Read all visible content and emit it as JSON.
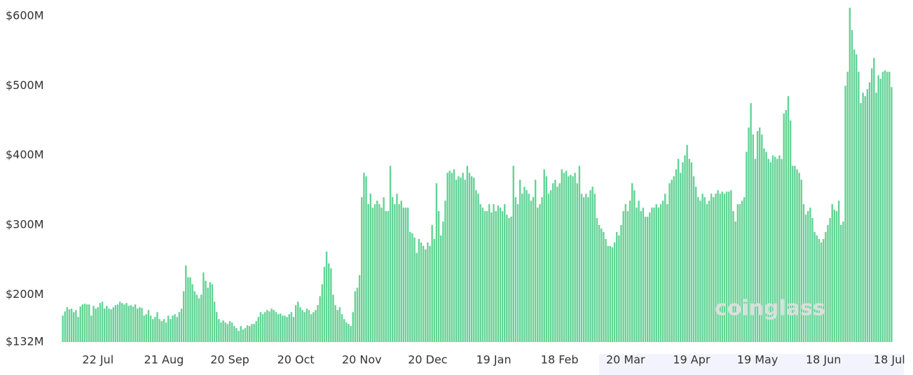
{
  "chart_data": {
    "type": "bar",
    "color": "#62d394",
    "watermark": "coinglass",
    "ylim": [
      132,
      615
    ],
    "yticks": [
      {
        "value": 132,
        "label": "$132M"
      },
      {
        "value": 200,
        "label": "$200M"
      },
      {
        "value": 300,
        "label": "$300M"
      },
      {
        "value": 400,
        "label": "$400M"
      },
      {
        "value": 500,
        "label": "$500M"
      },
      {
        "value": 600,
        "label": "$600M"
      }
    ],
    "grid": false,
    "categories": [
      null,
      null,
      null,
      null,
      null,
      null,
      null,
      null,
      null,
      null,
      null,
      null,
      null,
      null,
      null,
      null,
      "22 Jul",
      null,
      null,
      null,
      null,
      null,
      null,
      null,
      null,
      null,
      null,
      null,
      null,
      null,
      null,
      null,
      null,
      null,
      null,
      null,
      null,
      null,
      null,
      null,
      null,
      null,
      null,
      null,
      null,
      null,
      "21 Aug",
      null,
      null,
      null,
      null,
      null,
      null,
      null,
      null,
      null,
      null,
      null,
      null,
      null,
      null,
      null,
      null,
      null,
      null,
      null,
      null,
      null,
      null,
      null,
      null,
      null,
      null,
      null,
      null,
      null,
      "20 Sep",
      null,
      null,
      null,
      null,
      null,
      null,
      null,
      null,
      null,
      null,
      null,
      null,
      null,
      null,
      null,
      null,
      null,
      null,
      null,
      null,
      null,
      null,
      null,
      null,
      null,
      null,
      null,
      null,
      null,
      "20 Oct",
      null,
      null,
      null,
      null,
      null,
      null,
      null,
      null,
      null,
      null,
      null,
      null,
      null,
      null,
      null,
      null,
      null,
      null,
      null,
      null,
      null,
      null,
      null,
      null,
      null,
      null,
      null,
      null,
      null,
      "20 Nov",
      null,
      null,
      null,
      null,
      null,
      null,
      null,
      null,
      null,
      null,
      null,
      null,
      null,
      null,
      null,
      null,
      null,
      null,
      null,
      null,
      null,
      null,
      null,
      null,
      null,
      null,
      null,
      null,
      null,
      "20 Dec",
      null,
      null,
      null,
      null,
      null,
      null,
      null,
      null,
      null,
      null,
      null,
      null,
      null,
      null,
      null,
      null,
      null,
      null,
      null,
      null,
      null,
      null,
      null,
      null,
      null,
      null,
      null,
      null,
      null,
      "19 Jan",
      null,
      null,
      null,
      null,
      null,
      null,
      null,
      null,
      null,
      null,
      null,
      null,
      null,
      null,
      null,
      null,
      null,
      null,
      null,
      null,
      null,
      null,
      null,
      null,
      null,
      null,
      null,
      null,
      null,
      "18 Feb",
      null,
      null,
      null,
      null,
      null,
      null,
      null,
      null,
      null,
      null,
      null,
      null,
      null,
      null,
      null,
      null,
      null,
      null,
      null,
      null,
      null,
      null,
      null,
      null,
      null,
      null,
      null,
      null,
      null,
      "20 Mar",
      null,
      null,
      null,
      null,
      null,
      null,
      null,
      null,
      null,
      null,
      null,
      null,
      null,
      null,
      null,
      null,
      null,
      null,
      null,
      null,
      null,
      null,
      null,
      null,
      null,
      null,
      null,
      null,
      null,
      "19 Apr",
      null,
      null,
      null,
      null,
      null,
      null,
      null,
      null,
      null,
      null,
      null,
      null,
      null,
      null,
      null,
      null,
      null,
      null,
      null,
      null,
      null,
      null,
      null,
      null,
      null,
      null,
      null,
      null,
      null,
      "19 May",
      null,
      null,
      null,
      null,
      null,
      null,
      null,
      null,
      null,
      null,
      null,
      null,
      null,
      null,
      null,
      null,
      null,
      null,
      null,
      null,
      null,
      null,
      null,
      null,
      null,
      null,
      null,
      null,
      null,
      "18 Jun",
      null,
      null,
      null,
      null,
      null,
      null,
      null,
      null,
      null,
      null,
      null,
      null,
      null,
      null,
      null,
      null,
      null,
      null,
      null,
      null,
      null,
      null,
      null,
      null,
      null,
      null,
      null,
      null,
      null,
      "18 Jul",
      null
    ],
    "values": [
      170,
      176,
      182,
      179,
      180,
      175,
      178,
      168,
      183,
      186,
      187,
      186,
      186,
      170,
      184,
      180,
      182,
      188,
      190,
      180,
      184,
      180,
      179,
      182,
      185,
      186,
      190,
      188,
      186,
      188,
      184,
      185,
      183,
      186,
      180,
      182,
      181,
      170,
      172,
      178,
      170,
      165,
      168,
      175,
      165,
      162,
      165,
      160,
      170,
      165,
      170,
      172,
      168,
      175,
      180,
      205,
      242,
      225,
      225,
      215,
      205,
      200,
      195,
      200,
      232,
      220,
      210,
      218,
      215,
      190,
      175,
      165,
      160,
      163,
      160,
      158,
      162,
      160,
      155,
      152,
      148,
      155,
      150,
      152,
      156,
      155,
      158,
      158,
      162,
      168,
      175,
      172,
      175,
      178,
      176,
      180,
      178,
      175,
      172,
      173,
      170,
      170,
      168,
      172,
      175,
      168,
      185,
      190,
      182,
      178,
      175,
      180,
      178,
      172,
      175,
      178,
      185,
      198,
      215,
      240,
      262,
      245,
      238,
      200,
      185,
      178,
      182,
      172,
      165,
      160,
      158,
      155,
      175,
      205,
      210,
      228,
      340,
      375,
      370,
      330,
      345,
      325,
      330,
      335,
      330,
      325,
      340,
      320,
      320,
      385,
      340,
      330,
      345,
      330,
      335,
      325,
      325,
      325,
      290,
      288,
      282,
      260,
      280,
      275,
      270,
      265,
      275,
      270,
      300,
      280,
      360,
      320,
      285,
      305,
      335,
      375,
      378,
      375,
      380,
      365,
      370,
      368,
      375,
      365,
      385,
      375,
      370,
      368,
      350,
      345,
      330,
      325,
      320,
      320,
      330,
      318,
      330,
      320,
      328,
      325,
      320,
      330,
      315,
      310,
      312,
      385,
      340,
      330,
      365,
      345,
      355,
      350,
      345,
      335,
      340,
      365,
      325,
      330,
      340,
      380,
      370,
      345,
      350,
      360,
      365,
      355,
      360,
      380,
      375,
      378,
      370,
      372,
      370,
      375,
      360,
      385,
      345,
      340,
      345,
      340,
      350,
      355,
      345,
      310,
      300,
      295,
      290,
      280,
      270,
      270,
      268,
      275,
      290,
      285,
      300,
      320,
      330,
      320,
      335,
      360,
      350,
      325,
      335,
      320,
      325,
      312,
      312,
      318,
      325,
      325,
      330,
      325,
      330,
      335,
      345,
      330,
      360,
      365,
      370,
      380,
      395,
      375,
      390,
      400,
      415,
      395,
      390,
      370,
      355,
      340,
      335,
      345,
      340,
      330,
      335,
      345,
      340,
      345,
      350,
      345,
      348,
      345,
      348,
      348,
      350,
      320,
      305,
      330,
      330,
      335,
      340,
      405,
      440,
      475,
      430,
      395,
      435,
      440,
      430,
      410,
      405,
      395,
      390,
      400,
      398,
      395,
      400,
      395,
      460,
      465,
      485,
      450,
      385,
      385,
      380,
      375,
      365,
      330,
      315,
      320,
      325,
      310,
      290,
      285,
      280,
      275,
      280,
      290,
      300,
      310,
      330,
      322,
      320,
      335,
      300,
      305,
      500,
      520,
      612,
      580,
      552,
      545,
      520,
      475,
      490,
      485,
      495,
      505,
      525,
      540,
      490,
      515,
      510,
      520,
      522,
      520,
      520,
      498
    ]
  }
}
